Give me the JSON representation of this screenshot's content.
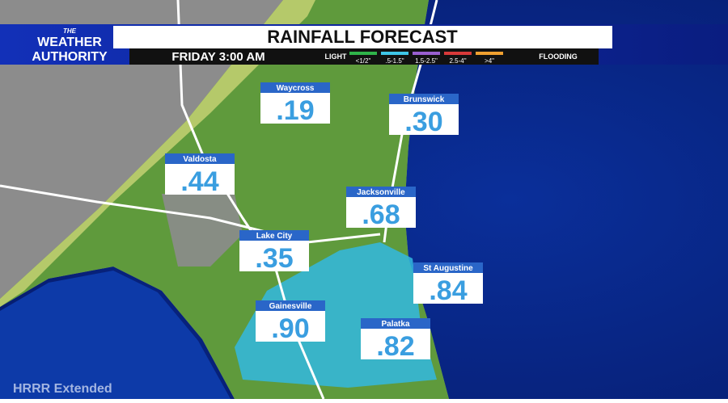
{
  "header": {
    "logo": [
      "THE",
      "WEATHER",
      "AUTHORITY"
    ],
    "title": "RAINFALL FORECAST",
    "time": "FRIDAY 3:00 AM"
  },
  "legend": {
    "start": "LIGHT",
    "end": "FLOODING",
    "items": [
      {
        "label": "<1/2\"",
        "color": "#2fb34a"
      },
      {
        "label": ".5-1.5\"",
        "color": "#3fc6e8"
      },
      {
        "label": "1.5-2.5\"",
        "color": "#9a5fd0"
      },
      {
        "label": "2.5-4\"",
        "color": "#d83a3a"
      },
      {
        "label": ">4\"",
        "color": "#f0a030"
      }
    ]
  },
  "cities": [
    {
      "name": "Waycross",
      "amount": ".19"
    },
    {
      "name": "Brunswick",
      "amount": ".30"
    },
    {
      "name": "Valdosta",
      "amount": ".44"
    },
    {
      "name": "Jacksonville",
      "amount": ".68"
    },
    {
      "name": "Lake City",
      "amount": ".35"
    },
    {
      "name": "St Augustine",
      "amount": ".84"
    },
    {
      "name": "Gainesville",
      "amount": ".90"
    },
    {
      "name": "Palatka",
      "amount": ".82"
    }
  ],
  "footer": "HRRR Extended"
}
